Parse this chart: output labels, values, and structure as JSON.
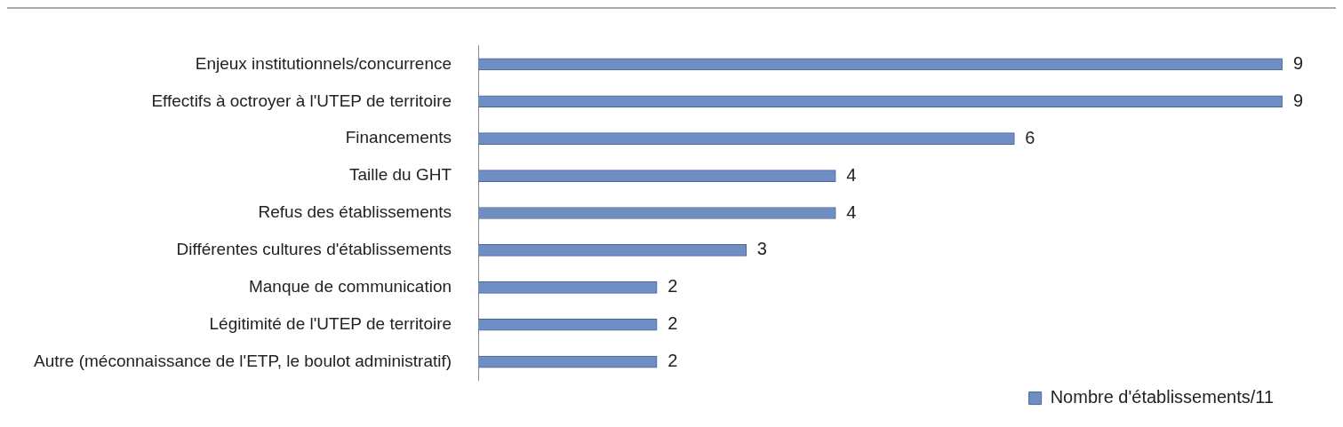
{
  "chart_data": {
    "type": "bar",
    "orientation": "horizontal",
    "categories": [
      "Enjeux institutionnels/concurrence",
      "Effectifs à octroyer à l'UTEP de territoire",
      "Financements",
      "Taille du GHT",
      "Refus des établissements",
      "Différentes cultures d'établissements",
      "Manque de communication",
      "Légitimité de l'UTEP de territoire",
      "Autre (méconnaissance de l'ETP, le boulot administratif)"
    ],
    "series": [
      {
        "name": "Nombre d'établissements/11",
        "color": "#6f8fc4",
        "values": [
          9,
          9,
          6,
          4,
          4,
          3,
          2,
          2,
          2
        ]
      }
    ],
    "data_labels": true,
    "legend": "bottom right"
  }
}
